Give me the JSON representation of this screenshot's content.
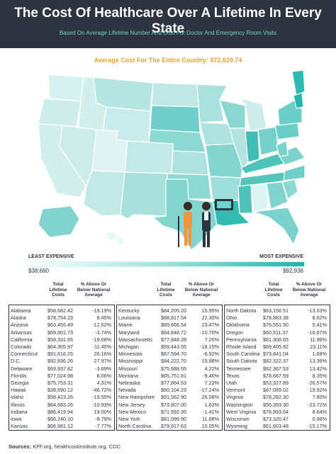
{
  "title": "The Cost Of Healthcare Over A Lifetime In Every State",
  "subtitle": "Based On Average Lifetime Number And Cost For Doctor And Emergency Room Visits",
  "average_cost": "Average Cost For The Entire Country: $72,620.74",
  "legend": {
    "least_label": "LEAST EXPENSIVE",
    "most_label": "MOST EXPENSIVE",
    "min_value": "$38,690",
    "max_value": "$92,936"
  },
  "table": {
    "headers": {
      "cost": "Total Lifetime Costs",
      "pct": "% Above Or Below National Average"
    },
    "columns": [
      [
        {
          "state": "Alabama",
          "cost": "$58,682.42",
          "pct": "-19.19%"
        },
        {
          "state": "Alaska",
          "cost": "$78,754.23",
          "pct": "8.45%"
        },
        {
          "state": "Arizona",
          "cost": "$63,455.49",
          "pct": "-12.62%"
        },
        {
          "state": "Arkansas",
          "cost": "$69,901.73",
          "pct": "-3.74%"
        },
        {
          "state": "California",
          "cost": "$58,331.65",
          "pct": "-19.68%"
        },
        {
          "state": "Colorado",
          "cost": "$64,305.97",
          "pct": "-11.45%"
        },
        {
          "state": "Connecticut",
          "cost": "$91,616.25",
          "pct": "26.16%"
        },
        {
          "state": "D.C.",
          "cost": "$92,936.26",
          "pct": "27.97%"
        },
        {
          "state": "Delaware",
          "cost": "$69,937.82",
          "pct": "-3.69%"
        },
        {
          "state": "Florida",
          "cost": "$77,024.98",
          "pct": "6.06%"
        },
        {
          "state": "Georgia",
          "cost": "$75,753.31",
          "pct": "4.31%"
        },
        {
          "state": "Hawaii",
          "cost": "$38,690.12",
          "pct": "-46.72%"
        },
        {
          "state": "Idaho",
          "cost": "$58,423.26",
          "pct": "-19.55%"
        },
        {
          "state": "Illinois",
          "cost": "$64,683.26",
          "pct": "-10.93%"
        },
        {
          "state": "Indiana",
          "cost": "$86,419.94",
          "pct": "19.00%"
        },
        {
          "state": "Iowa",
          "cost": "$66,240.10",
          "pct": "-8.79%"
        },
        {
          "state": "Kansas",
          "cost": "$66,981.12",
          "pct": "-7.77%"
        }
      ],
      [
        {
          "state": "Kentucky",
          "cost": "$84,205.20",
          "pct": "15.95%"
        },
        {
          "state": "Louisiana",
          "cost": "$88,817.54",
          "pct": "22.30%"
        },
        {
          "state": "Maine",
          "cost": "$89,666.54",
          "pct": "23.47%"
        },
        {
          "state": "Maryland",
          "cost": "$64,848.72",
          "pct": "-10.70%"
        },
        {
          "state": "Massachusetts",
          "cost": "$77,848.28",
          "pct": "7.20%"
        },
        {
          "state": "Michigan",
          "cost": "$59,443.55",
          "pct": "-18.15%"
        },
        {
          "state": "Minnesota",
          "cost": "$67,594.70",
          "pct": "-6.92%"
        },
        {
          "state": "Mississippi",
          "cost": "$84,222.70",
          "pct": "15.98%"
        },
        {
          "state": "Missouri",
          "cost": "$75,688.55",
          "pct": "4.22%"
        },
        {
          "state": "Montana",
          "cost": "$65,751.81",
          "pct": "-9.46%"
        },
        {
          "state": "Nebraska",
          "cost": "$77,864.53",
          "pct": "7.22%"
        },
        {
          "state": "Nevada",
          "cost": "$60,104.23",
          "pct": "-17.24%"
        },
        {
          "state": "New Hampshire",
          "cost": "$91,562.90",
          "pct": "26.08%"
        },
        {
          "state": "New Jersey",
          "cost": "$73,807.00",
          "pct": "1.63%"
        },
        {
          "state": "New Mexico",
          "cost": "$71,592.35",
          "pct": "-1.41%"
        },
        {
          "state": "New York",
          "cost": "$81,099.90",
          "pct": "11.68%"
        },
        {
          "state": "North Carolina",
          "cost": "$79,917.63",
          "pct": "10.05%"
        }
      ],
      [
        {
          "state": "North Dakota",
          "cost": "$63,156.51",
          "pct": "-13.03%"
        },
        {
          "state": "Ohio",
          "cost": "$78,883.38",
          "pct": "8.62%"
        },
        {
          "state": "Oklahoma",
          "cost": "$76,551.50",
          "pct": "5.41%"
        },
        {
          "state": "Oregon",
          "cost": "$60,511.37",
          "pct": "-16.67%"
        },
        {
          "state": "Pennsylvania",
          "cost": "$81,308.65",
          "pct": "11.96%"
        },
        {
          "state": "Rhode Island",
          "cost": "$89,405.92",
          "pct": "23.11%"
        },
        {
          "state": "South Carolina",
          "cost": "$73,841.04",
          "pct": "1.68%"
        },
        {
          "state": "South Dakota",
          "cost": "$82,322.37",
          "pct": "13.36%"
        },
        {
          "state": "Tennessee",
          "cost": "$82,367.53",
          "pct": "13.42%"
        },
        {
          "state": "Texas",
          "cost": "$78,687.59",
          "pct": "8.35%"
        },
        {
          "state": "Utah",
          "cost": "$53,327.89",
          "pct": "-26.57%"
        },
        {
          "state": "Vermont",
          "cost": "$87,089.02",
          "pct": "19.92%"
        },
        {
          "state": "Virginia",
          "cost": "$78,282.30",
          "pct": "7.80%"
        },
        {
          "state": "Washington",
          "cost": "$55,393.30",
          "pct": "-23.72%"
        },
        {
          "state": "West Virginia",
          "cost": "$78,893.54",
          "pct": "8.64%"
        },
        {
          "state": "Wisconsin",
          "cost": "$73,320.47",
          "pct": "0.96%"
        },
        {
          "state": "Wyoming",
          "cost": "$61,603.48",
          "pct": "-15.17%"
        }
      ]
    ]
  },
  "sources": {
    "label": "Sources:",
    "text": "KFF.org, healthcostinstitute.org, CDC"
  },
  "colors": {
    "header_bg": "#2d3440",
    "accent_teal": "#1fb5ad",
    "accent_orange": "#f2a12c",
    "light_teal": "#bfe9e6"
  }
}
